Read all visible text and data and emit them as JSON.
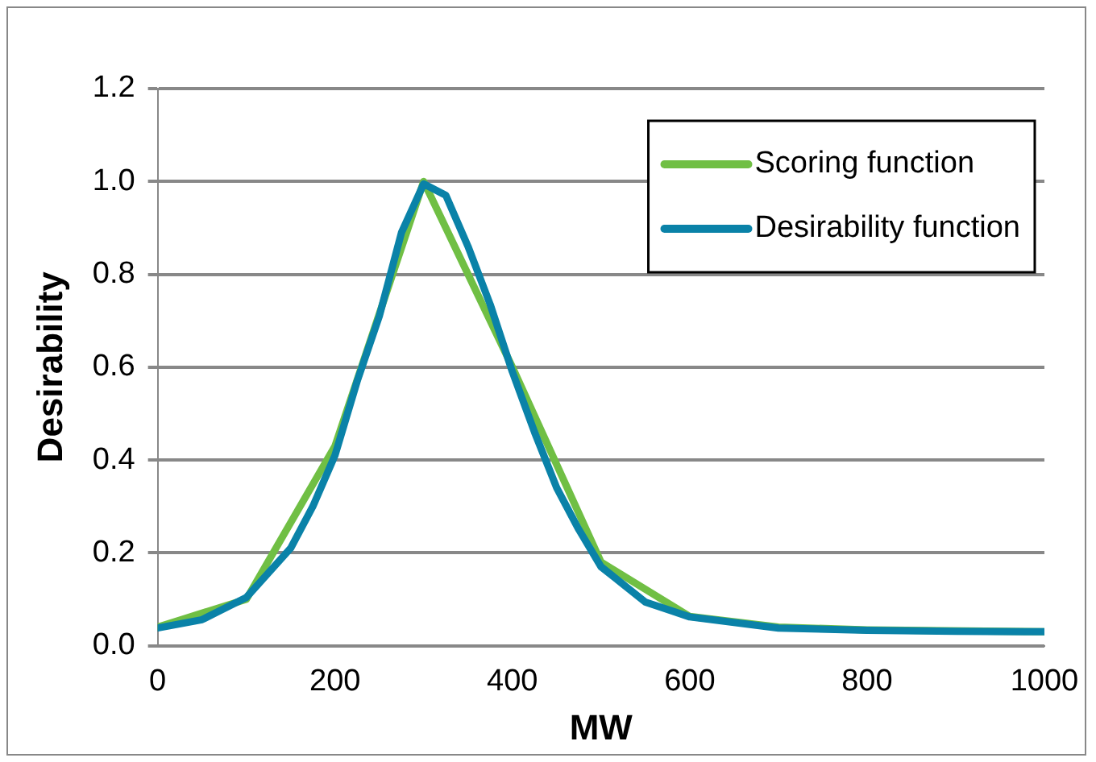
{
  "chart_data": {
    "type": "line",
    "xlabel": "MW",
    "ylabel": "Desirability",
    "xlim": [
      0,
      1000
    ],
    "xticks": [
      0,
      200,
      400,
      600,
      800,
      1000
    ],
    "ylim": [
      0,
      1.2
    ],
    "yticks": [
      {
        "value": 0,
        "label": "0.0"
      },
      {
        "value": 0.2,
        "label": "0.2"
      },
      {
        "value": 0.4,
        "label": "0.4"
      },
      {
        "value": 0.6,
        "label": "0.6"
      },
      {
        "value": 0.8,
        "label": "0.8"
      },
      {
        "value": 1,
        "label": "1.0"
      },
      {
        "value": 1.2,
        "label": "1.2"
      }
    ],
    "grid": "y",
    "legend": "top right",
    "marker": "none",
    "line_style": "solid",
    "series": [
      {
        "name": "Scoring function",
        "color": "#70bf44",
        "x": [
          0,
          100,
          200,
          300,
          400,
          500,
          600,
          700,
          800,
          1000
        ],
        "values": [
          0.04,
          0.1,
          0.43,
          1.0,
          0.6,
          0.18,
          0.063,
          0.04,
          0.034,
          0.03
        ]
      },
      {
        "name": "Desirability function",
        "color": "#0a82a8",
        "x": [
          0,
          50,
          100,
          150,
          175,
          200,
          225,
          250,
          275,
          300,
          325,
          350,
          375,
          400,
          425,
          450,
          475,
          500,
          550,
          600,
          700,
          800,
          900,
          1000
        ],
        "values": [
          0.038,
          0.056,
          0.104,
          0.21,
          0.3,
          0.41,
          0.57,
          0.71,
          0.89,
          0.995,
          0.97,
          0.86,
          0.735,
          0.59,
          0.46,
          0.34,
          0.25,
          0.17,
          0.094,
          0.062,
          0.038,
          0.033,
          0.031,
          0.03
        ]
      }
    ]
  }
}
